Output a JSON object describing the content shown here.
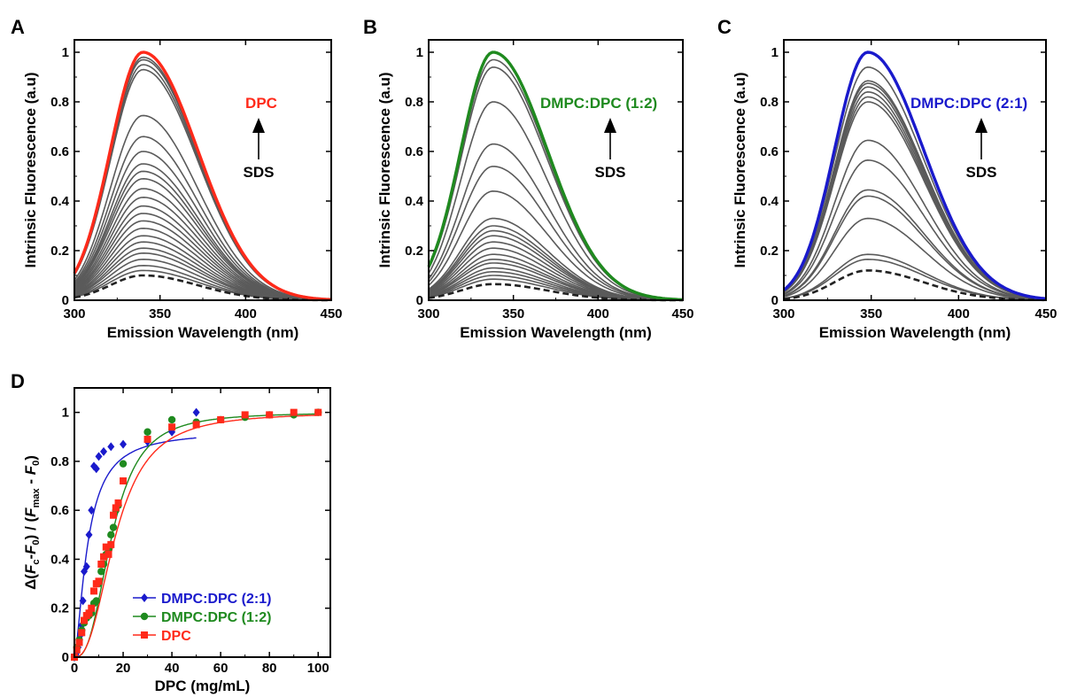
{
  "panels": {
    "A": {
      "letter": "A",
      "annotation": "DPC",
      "arrow_label": "SDS"
    },
    "B": {
      "letter": "B",
      "annotation": "DMPC:DPC (1:2)",
      "arrow_label": "SDS"
    },
    "C": {
      "letter": "C",
      "annotation": "DMPC:DPC (2:1)",
      "arrow_label": "SDS"
    },
    "D": {
      "letter": "D"
    }
  },
  "colors": {
    "A": "#ff2a1a",
    "B": "#1f8a1f",
    "C": "#1a1acc",
    "gray": "#5a5a5a",
    "dashed": "#222222",
    "axis": "#000000"
  },
  "chart_data": [
    {
      "panel": "A",
      "type": "line",
      "xlabel": "Emission Wavelength (nm)",
      "ylabel": "Intrinsic Fluorescence (a.u)",
      "xlim": [
        300,
        450
      ],
      "ylim": [
        0,
        1.05
      ],
      "xticks": [
        300,
        350,
        400,
        450
      ],
      "yticks": [
        0,
        0.2,
        0.4,
        0.6,
        0.8,
        1
      ],
      "peak_wavelength": 340,
      "highlight_series": "DPC",
      "gray_series_peaks": [
        0.12,
        0.14,
        0.165,
        0.19,
        0.21,
        0.235,
        0.26,
        0.29,
        0.32,
        0.35,
        0.38,
        0.415,
        0.45,
        0.49,
        0.52,
        0.55,
        0.6,
        0.66,
        0.745,
        0.93,
        0.95,
        0.97,
        0.98
      ],
      "dashed_series_peak": 0.1,
      "highlight_peak": 1.0
    },
    {
      "panel": "B",
      "type": "line",
      "xlabel": "Emission Wavelength (nm)",
      "ylabel": "Intrinsic Fluorescence (a.u)",
      "xlim": [
        300,
        450
      ],
      "ylim": [
        0,
        1.05
      ],
      "xticks": [
        300,
        350,
        400,
        450
      ],
      "yticks": [
        0,
        0.2,
        0.4,
        0.6,
        0.8,
        1
      ],
      "peak_wavelength": 338,
      "highlight_series": "DMPC:DPC (1:2)",
      "gray_series_peaks": [
        0.085,
        0.1,
        0.115,
        0.13,
        0.15,
        0.165,
        0.185,
        0.21,
        0.235,
        0.26,
        0.28,
        0.3,
        0.33,
        0.44,
        0.54,
        0.63,
        0.8,
        0.94,
        0.97
      ],
      "dashed_series_peak": 0.065,
      "highlight_peak": 1.0
    },
    {
      "panel": "C",
      "type": "line",
      "xlabel": "Emission Wavelength (nm)",
      "ylabel": "Intrinsic Fluorescence (a.u)",
      "xlim": [
        300,
        450
      ],
      "ylim": [
        0,
        1.05
      ],
      "xticks": [
        300,
        350,
        400,
        450
      ],
      "yticks": [
        0,
        0.2,
        0.4,
        0.6,
        0.8,
        1
      ],
      "peak_wavelength": 348,
      "highlight_series": "DMPC:DPC (2:1)",
      "gray_series_peaks": [
        0.165,
        0.185,
        0.33,
        0.42,
        0.445,
        0.565,
        0.645,
        0.8,
        0.82,
        0.84,
        0.86,
        0.875,
        0.885,
        0.94
      ],
      "dashed_series_peak": 0.12,
      "highlight_peak": 1.0
    },
    {
      "panel": "D",
      "type": "scatter",
      "xlabel": "DPC (mg/mL)",
      "ylabel": "Δ(Fc-F₀) / (Fₘₐₓ - F₀)",
      "ylabel_parts": {
        "delta": "Δ(",
        "Fc": "F",
        "c_sub": "c",
        "mid1": "-",
        "F0a": "F",
        "zero_sub_a": "0",
        "mid2": ") / (",
        "Fmax": "F",
        "max_sub": "max",
        "mid3": " - ",
        "F0b": "F",
        "zero_sub_b": "0",
        "end": ")"
      },
      "xlim": [
        0,
        105
      ],
      "ylim": [
        0,
        1.1
      ],
      "xticks": [
        0,
        20,
        40,
        60,
        80,
        100
      ],
      "yticks": [
        0,
        0.2,
        0.4,
        0.6,
        0.8,
        1
      ],
      "legend_position": "bottom-left",
      "series": [
        {
          "name": "DMPC:DPC (2:1)",
          "color": "#1a1acc",
          "marker": "diamond",
          "x": [
            0,
            0.5,
            1,
            1.5,
            2,
            2.5,
            3,
            3.5,
            4,
            5,
            6,
            7,
            8,
            9,
            10,
            12,
            15,
            20,
            30,
            40,
            50
          ],
          "y": [
            0,
            0.01,
            0.02,
            0.04,
            0.06,
            0.09,
            0.13,
            0.23,
            0.35,
            0.37,
            0.5,
            0.6,
            0.78,
            0.77,
            0.82,
            0.84,
            0.86,
            0.87,
            0.88,
            0.92,
            1.0
          ],
          "fit": {
            "kind": "sigmoid",
            "top": 0.925,
            "x50": 5.5,
            "slope": 1.55,
            "xmax": 50
          }
        },
        {
          "name": "DMPC:DPC (1:2)",
          "color": "#1f8a1f",
          "marker": "circle",
          "x": [
            0,
            1,
            2,
            3,
            4,
            5,
            6,
            7,
            8,
            9,
            10,
            11,
            12,
            13,
            14,
            15,
            16,
            17,
            18,
            20,
            30,
            40,
            50,
            60,
            70,
            80,
            90,
            100
          ],
          "y": [
            0,
            0.04,
            0.07,
            0.11,
            0.14,
            0.16,
            0.17,
            0.18,
            0.22,
            0.23,
            0.3,
            0.35,
            0.38,
            0.42,
            0.44,
            0.5,
            0.53,
            0.6,
            0.62,
            0.79,
            0.92,
            0.97,
            0.96,
            0.97,
            0.98,
            0.99,
            0.99,
            1.0
          ],
          "fit": {
            "kind": "sigmoid",
            "top": 1.0,
            "x50": 15.5,
            "slope": 2.7,
            "xmax": 100
          }
        },
        {
          "name": "DPC",
          "color": "#ff2a1a",
          "marker": "square",
          "x": [
            0,
            1,
            2,
            3,
            4,
            5,
            6,
            7,
            8,
            9,
            10,
            11,
            12,
            13,
            14,
            15,
            16,
            17,
            18,
            20,
            30,
            40,
            50,
            60,
            70,
            80,
            90,
            100
          ],
          "y": [
            0,
            0.03,
            0.06,
            0.1,
            0.15,
            0.17,
            0.18,
            0.2,
            0.27,
            0.3,
            0.31,
            0.38,
            0.41,
            0.45,
            0.42,
            0.46,
            0.58,
            0.61,
            0.63,
            0.72,
            0.89,
            0.94,
            0.95,
            0.97,
            0.99,
            0.99,
            1.0,
            1.0
          ],
          "fit": {
            "kind": "sigmoid",
            "top": 1.0,
            "x50": 17.0,
            "slope": 2.5,
            "xmax": 100
          }
        }
      ]
    }
  ]
}
